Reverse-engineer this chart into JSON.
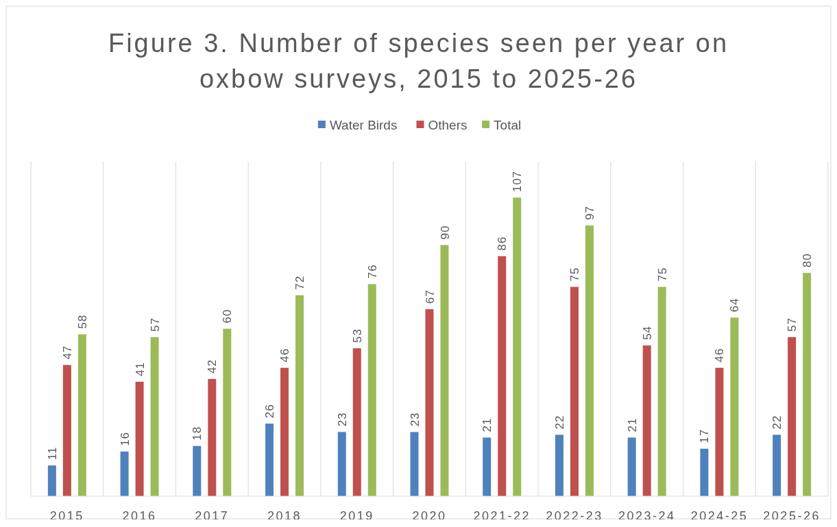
{
  "chart_data": {
    "type": "bar",
    "title": "Figure 3. Number of species seen per year on oxbow surveys, 2015 to 2025-26",
    "categories": [
      "2015",
      "2016",
      "2017",
      "2018",
      "2019",
      "2020",
      "2021-22",
      "2022-23",
      "2023-24",
      "2024-25",
      "2025-26"
    ],
    "series": [
      {
        "name": "Water Birds",
        "color": "#4f81bd",
        "values": [
          11,
          16,
          18,
          26,
          23,
          23,
          21,
          22,
          21,
          17,
          22
        ]
      },
      {
        "name": "Others",
        "color": "#c0504d",
        "values": [
          47,
          41,
          42,
          46,
          53,
          67,
          86,
          75,
          54,
          46,
          57
        ]
      },
      {
        "name": "Total",
        "color": "#9bbb59",
        "values": [
          58,
          57,
          60,
          72,
          76,
          90,
          107,
          97,
          75,
          64,
          80
        ]
      }
    ],
    "data_labels": true,
    "grid": "x",
    "legend": "top"
  }
}
